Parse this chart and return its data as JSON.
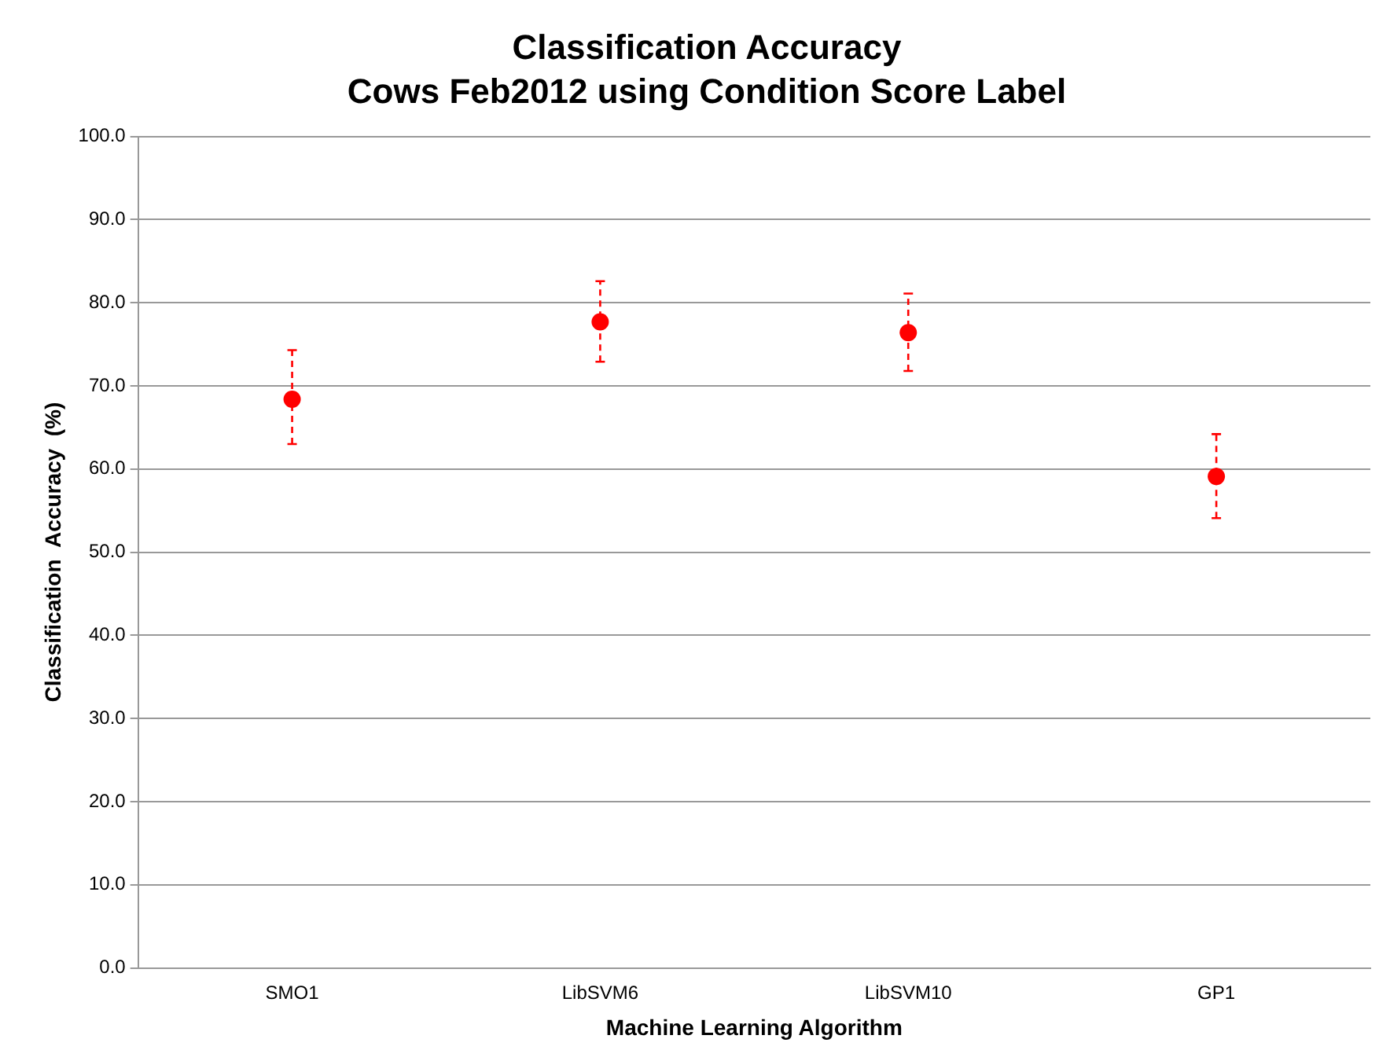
{
  "chart_data": {
    "type": "scatter",
    "title": "Classification Accuracy",
    "subtitle": "Cows Feb2012 using Condition Score Label",
    "xlabel": "Machine Learning Algorithm",
    "ylabel": "Classification  Accuracy  (%)",
    "categories": [
      "SMO1",
      "LibSVM6",
      "LibSVM10",
      "GP1"
    ],
    "values": [
      68.4,
      77.7,
      76.4,
      59.1
    ],
    "errors": [
      [
        63.0,
        74.3
      ],
      [
        72.9,
        82.6
      ],
      [
        71.8,
        81.1
      ],
      [
        54.1,
        64.2
      ]
    ],
    "color": "#ff0000",
    "marker": "circle",
    "ylim": [
      0,
      100
    ],
    "yticks": [
      {
        "value": 0,
        "label": "0.0"
      },
      {
        "value": 10,
        "label": "10.0"
      },
      {
        "value": 20,
        "label": "20.0"
      },
      {
        "value": 30,
        "label": "30.0"
      },
      {
        "value": 40,
        "label": "40.0"
      },
      {
        "value": 50,
        "label": "50.0"
      },
      {
        "value": 60,
        "label": "60.0"
      },
      {
        "value": 70,
        "label": "70.0"
      },
      {
        "value": 80,
        "label": "80.0"
      },
      {
        "value": 90,
        "label": "90.0"
      },
      {
        "value": 100,
        "label": "100.0"
      }
    ],
    "grid": "y",
    "legend": false
  }
}
